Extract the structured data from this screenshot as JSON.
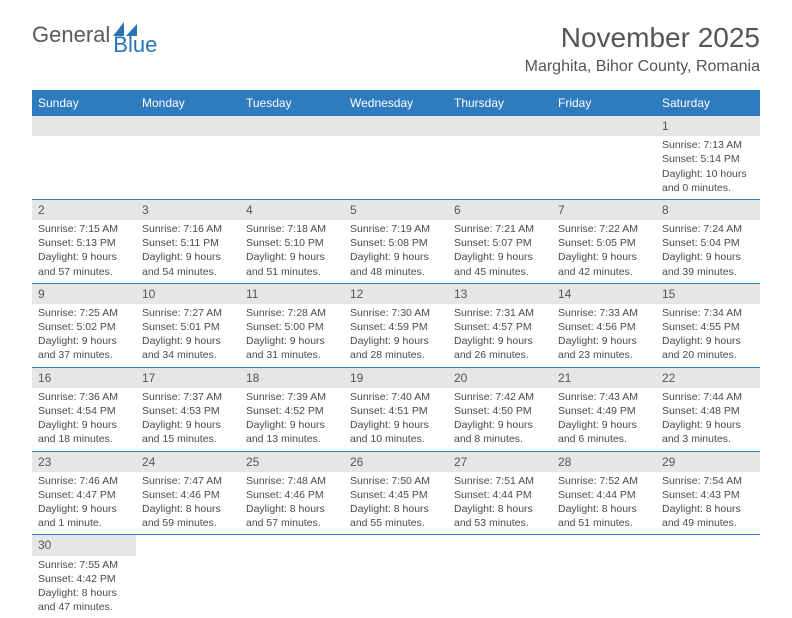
{
  "logo": {
    "text1": "General",
    "text2": "Blue"
  },
  "title": "November 2025",
  "location": "Marghita, Bihor County, Romania",
  "weekdays": [
    "Sunday",
    "Monday",
    "Tuesday",
    "Wednesday",
    "Thursday",
    "Friday",
    "Saturday"
  ],
  "colors": {
    "header_bg": "#2e7bbf",
    "header_text": "#ffffff",
    "daynum_bg": "#e6e6e6",
    "cell_border": "#2e7bbf",
    "body_text": "#4a4a4a",
    "title_text": "#555555",
    "logo_gray": "#5a5a5a",
    "logo_blue": "#2874b8"
  },
  "grid": [
    [
      null,
      null,
      null,
      null,
      null,
      null,
      {
        "n": "1",
        "sunrise": "7:13 AM",
        "sunset": "5:14 PM",
        "dl": "10 hours and 0 minutes."
      }
    ],
    [
      {
        "n": "2",
        "sunrise": "7:15 AM",
        "sunset": "5:13 PM",
        "dl": "9 hours and 57 minutes."
      },
      {
        "n": "3",
        "sunrise": "7:16 AM",
        "sunset": "5:11 PM",
        "dl": "9 hours and 54 minutes."
      },
      {
        "n": "4",
        "sunrise": "7:18 AM",
        "sunset": "5:10 PM",
        "dl": "9 hours and 51 minutes."
      },
      {
        "n": "5",
        "sunrise": "7:19 AM",
        "sunset": "5:08 PM",
        "dl": "9 hours and 48 minutes."
      },
      {
        "n": "6",
        "sunrise": "7:21 AM",
        "sunset": "5:07 PM",
        "dl": "9 hours and 45 minutes."
      },
      {
        "n": "7",
        "sunrise": "7:22 AM",
        "sunset": "5:05 PM",
        "dl": "9 hours and 42 minutes."
      },
      {
        "n": "8",
        "sunrise": "7:24 AM",
        "sunset": "5:04 PM",
        "dl": "9 hours and 39 minutes."
      }
    ],
    [
      {
        "n": "9",
        "sunrise": "7:25 AM",
        "sunset": "5:02 PM",
        "dl": "9 hours and 37 minutes."
      },
      {
        "n": "10",
        "sunrise": "7:27 AM",
        "sunset": "5:01 PM",
        "dl": "9 hours and 34 minutes."
      },
      {
        "n": "11",
        "sunrise": "7:28 AM",
        "sunset": "5:00 PM",
        "dl": "9 hours and 31 minutes."
      },
      {
        "n": "12",
        "sunrise": "7:30 AM",
        "sunset": "4:59 PM",
        "dl": "9 hours and 28 minutes."
      },
      {
        "n": "13",
        "sunrise": "7:31 AM",
        "sunset": "4:57 PM",
        "dl": "9 hours and 26 minutes."
      },
      {
        "n": "14",
        "sunrise": "7:33 AM",
        "sunset": "4:56 PM",
        "dl": "9 hours and 23 minutes."
      },
      {
        "n": "15",
        "sunrise": "7:34 AM",
        "sunset": "4:55 PM",
        "dl": "9 hours and 20 minutes."
      }
    ],
    [
      {
        "n": "16",
        "sunrise": "7:36 AM",
        "sunset": "4:54 PM",
        "dl": "9 hours and 18 minutes."
      },
      {
        "n": "17",
        "sunrise": "7:37 AM",
        "sunset": "4:53 PM",
        "dl": "9 hours and 15 minutes."
      },
      {
        "n": "18",
        "sunrise": "7:39 AM",
        "sunset": "4:52 PM",
        "dl": "9 hours and 13 minutes."
      },
      {
        "n": "19",
        "sunrise": "7:40 AM",
        "sunset": "4:51 PM",
        "dl": "9 hours and 10 minutes."
      },
      {
        "n": "20",
        "sunrise": "7:42 AM",
        "sunset": "4:50 PM",
        "dl": "9 hours and 8 minutes."
      },
      {
        "n": "21",
        "sunrise": "7:43 AM",
        "sunset": "4:49 PM",
        "dl": "9 hours and 6 minutes."
      },
      {
        "n": "22",
        "sunrise": "7:44 AM",
        "sunset": "4:48 PM",
        "dl": "9 hours and 3 minutes."
      }
    ],
    [
      {
        "n": "23",
        "sunrise": "7:46 AM",
        "sunset": "4:47 PM",
        "dl": "9 hours and 1 minute."
      },
      {
        "n": "24",
        "sunrise": "7:47 AM",
        "sunset": "4:46 PM",
        "dl": "8 hours and 59 minutes."
      },
      {
        "n": "25",
        "sunrise": "7:48 AM",
        "sunset": "4:46 PM",
        "dl": "8 hours and 57 minutes."
      },
      {
        "n": "26",
        "sunrise": "7:50 AM",
        "sunset": "4:45 PM",
        "dl": "8 hours and 55 minutes."
      },
      {
        "n": "27",
        "sunrise": "7:51 AM",
        "sunset": "4:44 PM",
        "dl": "8 hours and 53 minutes."
      },
      {
        "n": "28",
        "sunrise": "7:52 AM",
        "sunset": "4:44 PM",
        "dl": "8 hours and 51 minutes."
      },
      {
        "n": "29",
        "sunrise": "7:54 AM",
        "sunset": "4:43 PM",
        "dl": "8 hours and 49 minutes."
      }
    ],
    [
      {
        "n": "30",
        "sunrise": "7:55 AM",
        "sunset": "4:42 PM",
        "dl": "8 hours and 47 minutes."
      },
      null,
      null,
      null,
      null,
      null,
      null
    ]
  ],
  "labels": {
    "sunrise": "Sunrise:",
    "sunset": "Sunset:",
    "daylight": "Daylight:"
  }
}
